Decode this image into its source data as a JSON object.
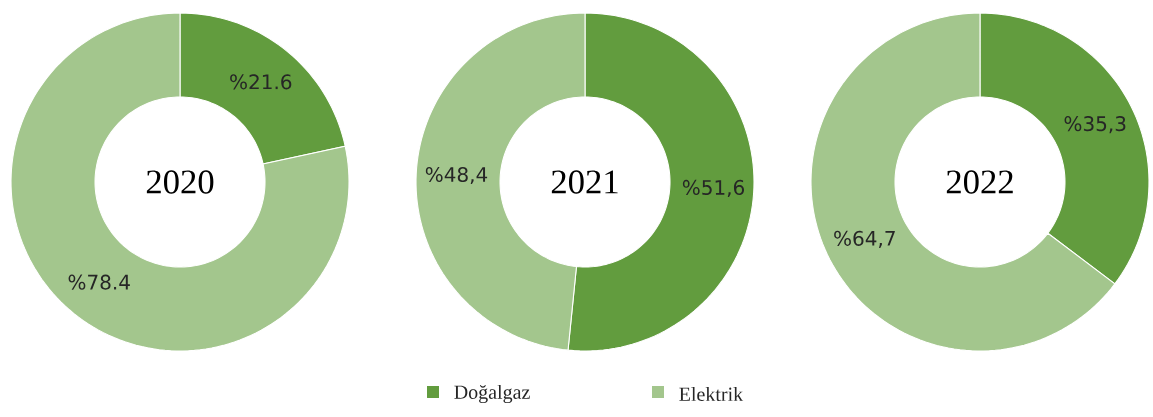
{
  "chart_data": [
    {
      "type": "donut",
      "title": "2020",
      "values": [
        21.6,
        78.4
      ],
      "colors": [
        "#629c3e",
        "#a3c68d"
      ],
      "value_labels": [
        "%21.6",
        "%78.4"
      ]
    },
    {
      "type": "donut",
      "title": "2021",
      "categories": [
        "Doğalgaz",
        "Elektrik"
      ],
      "values": [
        51.6,
        48.4
      ],
      "colors": [
        "#629c3e",
        "#a3c68d"
      ],
      "value_labels": [
        "%51,6",
        "%48,4"
      ],
      "legend": "bottom"
    },
    {
      "type": "donut",
      "title": "2022",
      "values": [
        35.3,
        64.7
      ],
      "colors": [
        "#629c3e",
        "#a3c68d"
      ],
      "value_labels": [
        "%35,3",
        "%64,7"
      ]
    }
  ]
}
